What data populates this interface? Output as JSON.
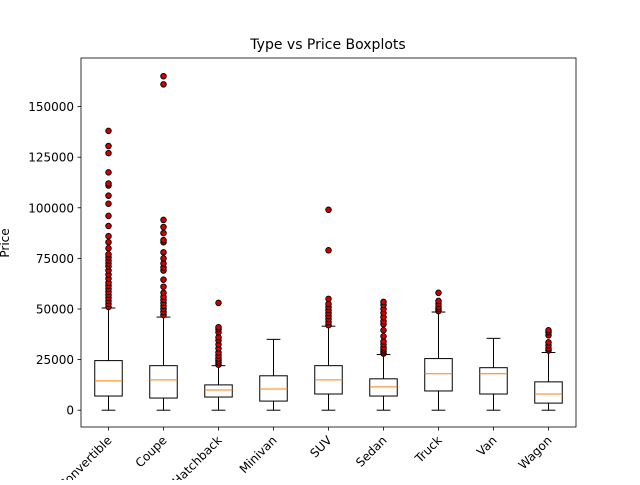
{
  "chart_data": {
    "type": "boxplot",
    "title": "Type vs Price Boxplots",
    "xlabel": "",
    "ylabel": "Price",
    "ylim": [
      -8300,
      174000
    ],
    "yticks": [
      0,
      25000,
      50000,
      75000,
      100000,
      125000,
      150000
    ],
    "ytick_labels": [
      "0",
      "25000",
      "50000",
      "75000",
      "100000",
      "125000",
      "150000"
    ],
    "grid": false,
    "colors": {
      "box": "#000000",
      "median": "#ff7f0e",
      "flier_fill": "#cc0000",
      "flier_edge": "#000000"
    },
    "categories": [
      "Convertible",
      "Coupe",
      "Hatchback",
      "Minivan",
      "SUV",
      "Sedan",
      "Truck",
      "Van",
      "Wagon"
    ],
    "boxes": [
      {
        "whisker_low": 0,
        "q1": 7000,
        "median": 14500,
        "q3": 24500,
        "whisker_high": 50500,
        "fliers": [
          51000,
          52500,
          54000,
          55500,
          57000,
          58500,
          60000,
          61500,
          63000,
          65000,
          67000,
          69000,
          71000,
          72500,
          74000,
          75500,
          77000,
          80000,
          83000,
          86000,
          91000,
          96000,
          102000,
          106000,
          111000,
          112000,
          117500,
          127000,
          130500,
          138000
        ]
      },
      {
        "whisker_low": 0,
        "q1": 6000,
        "median": 15000,
        "q3": 22000,
        "whisker_high": 46000,
        "fliers": [
          47000,
          48500,
          50000,
          51500,
          53000,
          54500,
          56000,
          58000,
          61000,
          64500,
          69000,
          70500,
          72500,
          75000,
          78000,
          83000,
          84000,
          87500,
          90500,
          94000,
          161000,
          165000
        ]
      },
      {
        "whisker_low": 0,
        "q1": 6500,
        "median": 10000,
        "q3": 12500,
        "whisker_high": 22000,
        "fliers": [
          22500,
          23500,
          24500,
          25500,
          27000,
          28500,
          30500,
          32500,
          34500,
          36000,
          38500,
          40000,
          41000,
          53000
        ]
      },
      {
        "whisker_low": 0,
        "q1": 4500,
        "median": 10500,
        "q3": 17000,
        "whisker_high": 35000,
        "fliers": []
      },
      {
        "whisker_low": 0,
        "q1": 8000,
        "median": 15000,
        "q3": 22000,
        "whisker_high": 41500,
        "fliers": [
          42000,
          43500,
          45000,
          46500,
          48000,
          49500,
          51000,
          52500,
          55000,
          79000,
          99000
        ]
      },
      {
        "whisker_low": 0,
        "q1": 7000,
        "median": 11500,
        "q3": 15500,
        "whisker_high": 27500,
        "fliers": [
          28000,
          29000,
          30000,
          31000,
          32500,
          34000,
          36500,
          39500,
          42500,
          44000,
          46000,
          48000,
          50000,
          52000,
          53500
        ]
      },
      {
        "whisker_low": 0,
        "q1": 9500,
        "median": 18000,
        "q3": 25500,
        "whisker_high": 48500,
        "fliers": [
          49000,
          50000,
          51000,
          52500,
          54000,
          58000
        ]
      },
      {
        "whisker_low": 0,
        "q1": 8000,
        "median": 18000,
        "q3": 21000,
        "whisker_high": 35500,
        "fliers": []
      },
      {
        "whisker_low": 0,
        "q1": 3500,
        "median": 8000,
        "q3": 14000,
        "whisker_high": 28500,
        "fliers": [
          29500,
          30500,
          32000,
          33500,
          37000,
          38500,
          39500
        ]
      }
    ]
  }
}
